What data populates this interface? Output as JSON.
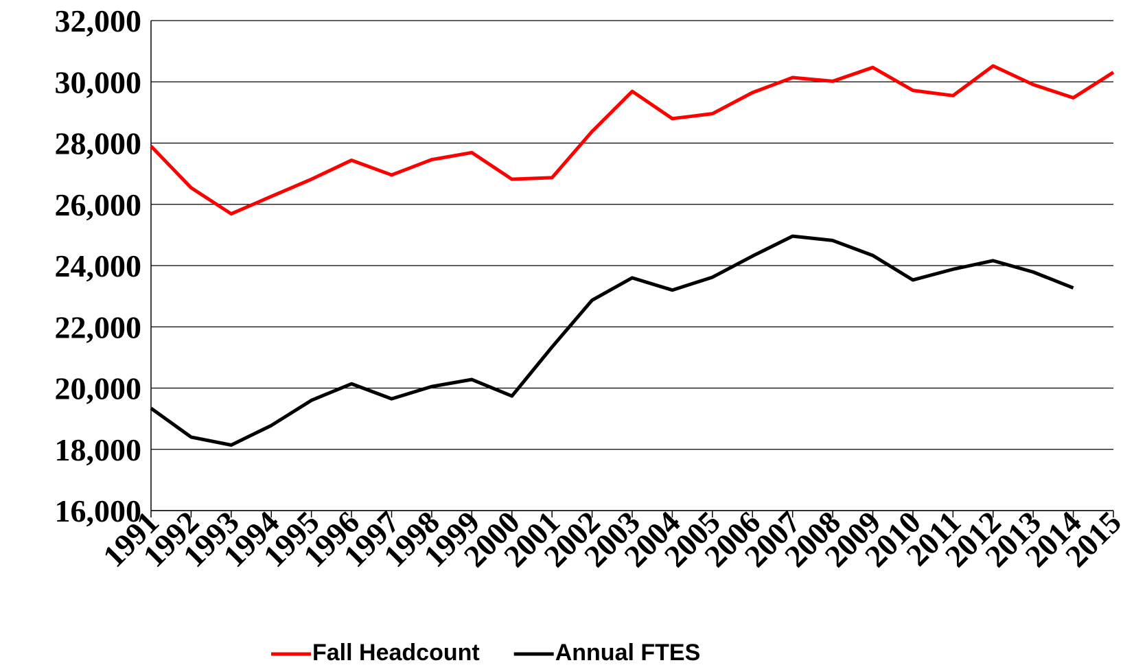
{
  "chart_data": {
    "type": "line",
    "categories": [
      "1991",
      "1992",
      "1993",
      "1994",
      "1995",
      "1996",
      "1997",
      "1998",
      "1999",
      "2000",
      "2001",
      "2002",
      "2003",
      "2004",
      "2005",
      "2006",
      "2007",
      "2008",
      "2009",
      "2010",
      "2011",
      "2012",
      "2013",
      "2014",
      "2015"
    ],
    "series": [
      {
        "name": "Fall Headcount",
        "color": "#ff0000",
        "values": [
          27900,
          26540,
          25690,
          26260,
          26820,
          27440,
          26960,
          27460,
          27690,
          26820,
          26870,
          28380,
          29690,
          28800,
          28960,
          29650,
          30140,
          30020,
          30470,
          29720,
          29550,
          30520,
          29910,
          29480,
          30310
        ]
      },
      {
        "name": "Annual FTES",
        "color": "#000000",
        "values": [
          19340,
          18400,
          18140,
          18780,
          19600,
          20140,
          19650,
          20050,
          20280,
          19740,
          21340,
          22870,
          23600,
          23200,
          23620,
          24310,
          24960,
          24820,
          24330,
          23530,
          23880,
          24160,
          23790,
          23270,
          null
        ]
      }
    ],
    "ylim": [
      16000,
      32000
    ],
    "yticks": [
      {
        "value": 16000,
        "label": "16,000"
      },
      {
        "value": 18000,
        "label": "18,000"
      },
      {
        "value": 20000,
        "label": "20,000"
      },
      {
        "value": 22000,
        "label": "22,000"
      },
      {
        "value": 24000,
        "label": "24,000"
      },
      {
        "value": 26000,
        "label": "26,000"
      },
      {
        "value": 28000,
        "label": "28,000"
      },
      {
        "value": 30000,
        "label": "30,000"
      },
      {
        "value": 32000,
        "label": "32,000"
      }
    ],
    "grid": true,
    "legend": "bottom"
  }
}
